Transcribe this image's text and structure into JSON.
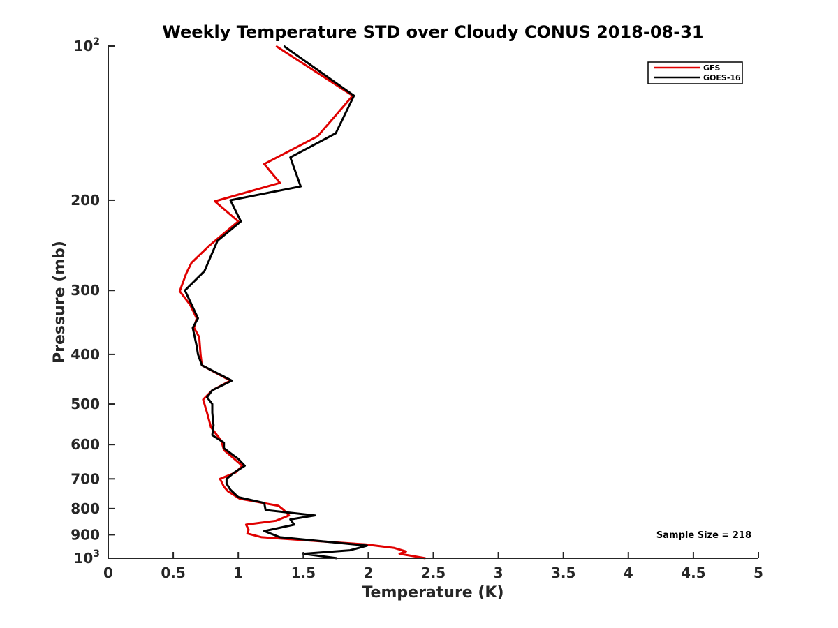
{
  "chart_data": {
    "type": "line",
    "title": "Weekly Temperature STD over Cloudy CONUS 2018-08-31",
    "xlabel": "Temperature (K)",
    "ylabel": "Pressure (mb)",
    "xlim": [
      0,
      5
    ],
    "ylim": [
      100,
      1000
    ],
    "y_scale": "log",
    "y_reversed": true,
    "grid": false,
    "legend_position": "top-right",
    "x_ticks": [
      "0",
      "0.5",
      "1",
      "1.5",
      "2",
      "2.5",
      "3",
      "3.5",
      "4",
      "4.5",
      "5"
    ],
    "y_ticks": [
      {
        "value": 100,
        "base": "10",
        "exp": "2",
        "label": ""
      },
      {
        "value": 200,
        "base": "",
        "exp": "",
        "label": "200"
      },
      {
        "value": 300,
        "base": "",
        "exp": "",
        "label": "300"
      },
      {
        "value": 400,
        "base": "",
        "exp": "",
        "label": "400"
      },
      {
        "value": 500,
        "base": "",
        "exp": "",
        "label": "500"
      },
      {
        "value": 600,
        "base": "",
        "exp": "",
        "label": "600"
      },
      {
        "value": 700,
        "base": "",
        "exp": "",
        "label": "700"
      },
      {
        "value": 800,
        "base": "",
        "exp": "",
        "label": "800"
      },
      {
        "value": 900,
        "base": "",
        "exp": "",
        "label": "900"
      },
      {
        "value": 1000,
        "base": "10",
        "exp": "3",
        "label": ""
      }
    ],
    "series": [
      {
        "name": "GFS",
        "color": "#e00000",
        "points": [
          [
            1.29,
            100
          ],
          [
            1.88,
            125
          ],
          [
            1.61,
            150
          ],
          [
            1.2,
            170
          ],
          [
            1.32,
            185
          ],
          [
            0.82,
            201
          ],
          [
            1.0,
            220
          ],
          [
            0.78,
            245
          ],
          [
            0.64,
            265
          ],
          [
            0.6,
            278
          ],
          [
            0.55,
            301
          ],
          [
            0.63,
            320
          ],
          [
            0.68,
            340
          ],
          [
            0.66,
            355
          ],
          [
            0.7,
            370
          ],
          [
            0.71,
            400
          ],
          [
            0.72,
            420
          ],
          [
            0.94,
            450
          ],
          [
            0.8,
            470
          ],
          [
            0.73,
            490
          ],
          [
            0.76,
            520
          ],
          [
            0.79,
            555
          ],
          [
            0.87,
            590
          ],
          [
            0.89,
            615
          ],
          [
            0.97,
            640
          ],
          [
            1.03,
            660
          ],
          [
            0.98,
            680
          ],
          [
            0.86,
            700
          ],
          [
            0.89,
            725
          ],
          [
            0.92,
            740
          ],
          [
            1.01,
            765
          ],
          [
            1.31,
            790
          ],
          [
            1.35,
            805
          ],
          [
            1.39,
            825
          ],
          [
            1.29,
            845
          ],
          [
            1.06,
            860
          ],
          [
            1.08,
            880
          ],
          [
            1.07,
            895
          ],
          [
            1.18,
            910
          ],
          [
            1.98,
            940
          ],
          [
            2.2,
            955
          ],
          [
            2.29,
            970
          ],
          [
            2.24,
            980
          ],
          [
            2.44,
            1000
          ]
        ]
      },
      {
        "name": "GOES-16",
        "color": "#000000",
        "points": [
          [
            1.35,
            100
          ],
          [
            1.89,
            125
          ],
          [
            1.75,
            148
          ],
          [
            1.4,
            165
          ],
          [
            1.48,
            188
          ],
          [
            0.94,
            200
          ],
          [
            1.02,
            220
          ],
          [
            0.84,
            240
          ],
          [
            0.74,
            275
          ],
          [
            0.59,
            300
          ],
          [
            0.69,
            340
          ],
          [
            0.65,
            355
          ],
          [
            0.68,
            385
          ],
          [
            0.69,
            400
          ],
          [
            0.72,
            420
          ],
          [
            0.95,
            450
          ],
          [
            0.8,
            470
          ],
          [
            0.76,
            485
          ],
          [
            0.8,
            500
          ],
          [
            0.8,
            520
          ],
          [
            0.81,
            550
          ],
          [
            0.8,
            575
          ],
          [
            0.89,
            595
          ],
          [
            0.89,
            610
          ],
          [
            1.0,
            640
          ],
          [
            1.05,
            660
          ],
          [
            0.97,
            680
          ],
          [
            0.91,
            700
          ],
          [
            0.91,
            715
          ],
          [
            0.94,
            735
          ],
          [
            1.0,
            760
          ],
          [
            1.2,
            780
          ],
          [
            1.21,
            805
          ],
          [
            1.59,
            825
          ],
          [
            1.4,
            840
          ],
          [
            1.43,
            860
          ],
          [
            1.2,
            885
          ],
          [
            1.32,
            910
          ],
          [
            1.99,
            945
          ],
          [
            1.86,
            965
          ],
          [
            1.5,
            980
          ],
          [
            1.76,
            1000
          ]
        ]
      }
    ],
    "annotations": [
      {
        "text": "Sample Size = 218",
        "position": "bottom-right"
      }
    ]
  }
}
